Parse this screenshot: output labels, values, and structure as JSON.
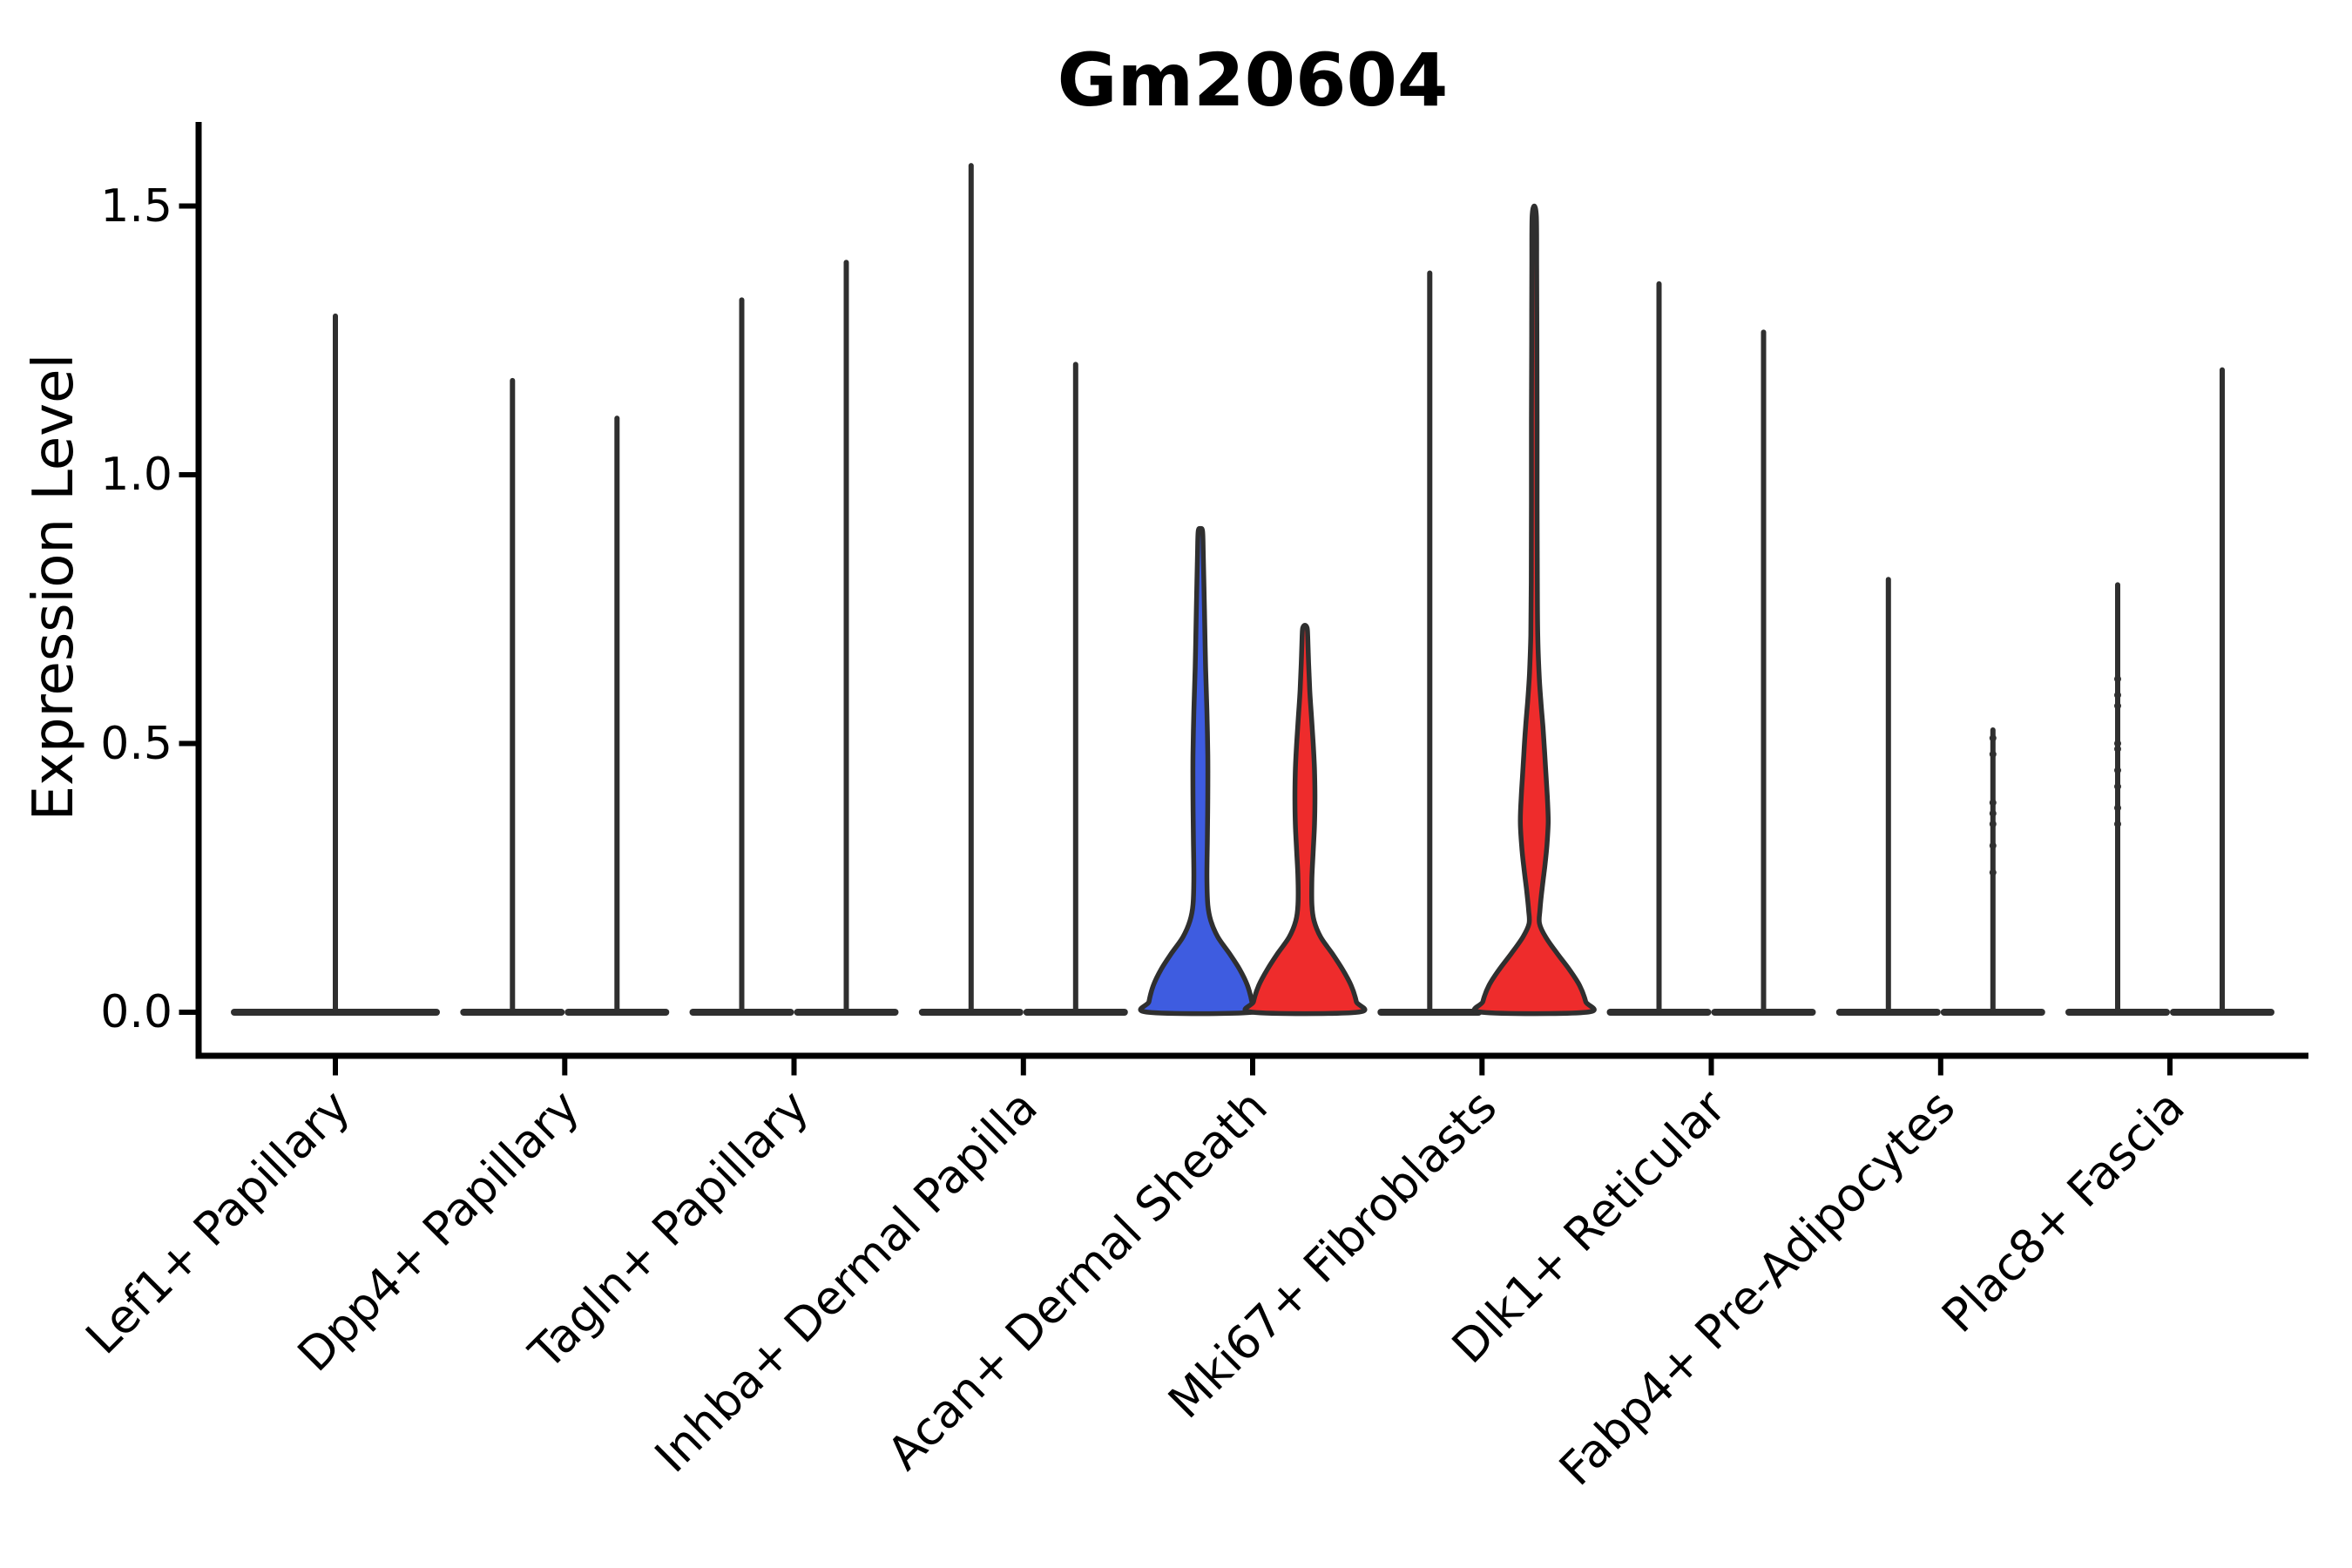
{
  "chart_data": {
    "type": "violin",
    "title": "Gm20604",
    "ylabel": "Expression Level",
    "xlabel": "",
    "grid": false,
    "legend": "none",
    "ylim": [
      -0.08,
      1.66
    ],
    "y_ticks": [
      0.0,
      0.5,
      1.0,
      1.5
    ],
    "y_tick_labels": [
      "0.0",
      "0.5",
      "1.0",
      "1.5"
    ],
    "colors": {
      "blue_fill": "#3E5CE0",
      "red_fill": "#EE2C2C",
      "violin_outline": "#2F2F2F",
      "axis": "#000000"
    },
    "description": "Violin plot of Gm20604 expression; most cells at 0 giving flat bases with thin spikes to the maximum expression value; Acan+ Dermal Sheath (blue/red) and Mki67+ Fibroblasts (red) show filled density bodies.",
    "categories": [
      {
        "label": "Lef1+ Papillary",
        "violins": [
          {
            "side": "center",
            "kind": "flat",
            "max_expression": 1.3,
            "half_width": 120
          }
        ]
      },
      {
        "label": "Dpp4+ Papillary",
        "violins": [
          {
            "side": "left",
            "kind": "flat",
            "max_expression": 1.18,
            "half_width": 60
          },
          {
            "side": "right",
            "kind": "flat",
            "max_expression": 1.11,
            "half_width": 60
          }
        ]
      },
      {
        "label": "Tagln+ Papillary",
        "violins": [
          {
            "side": "left",
            "kind": "flat",
            "max_expression": 1.33,
            "half_width": 60
          },
          {
            "side": "right",
            "kind": "flat",
            "max_expression": 1.4,
            "half_width": 60
          }
        ]
      },
      {
        "label": "Inhba+ Dermal Papilla",
        "violins": [
          {
            "side": "left",
            "kind": "flat",
            "max_expression": 1.58,
            "half_width": 60
          },
          {
            "side": "right",
            "kind": "flat",
            "max_expression": 1.21,
            "half_width": 60
          }
        ]
      },
      {
        "label": "Acan+ Dermal Sheath",
        "violins": [
          {
            "side": "left",
            "kind": "shaped",
            "max_expression": 0.9,
            "fill": "#3E5CE0",
            "profile": [
              [
                0,
                60
              ],
              [
                0.02,
                59
              ],
              [
                0.05,
                54
              ],
              [
                0.08,
                45
              ],
              [
                0.11,
                33
              ],
              [
                0.14,
                20
              ],
              [
                0.17,
                12
              ],
              [
                0.2,
                8.5
              ],
              [
                0.25,
                7.5
              ],
              [
                0.32,
                8
              ],
              [
                0.4,
                8.5
              ],
              [
                0.48,
                8.5
              ],
              [
                0.56,
                7.5
              ],
              [
                0.64,
                6
              ],
              [
                0.72,
                5
              ],
              [
                0.8,
                4
              ],
              [
                0.86,
                3.2
              ],
              [
                0.895,
                2.5
              ],
              [
                0.9,
                0
              ]
            ]
          },
          {
            "side": "right",
            "kind": "shaped",
            "max_expression": 0.72,
            "fill": "#EE2C2C",
            "profile": [
              [
                0,
                60
              ],
              [
                0.02,
                59
              ],
              [
                0.05,
                53
              ],
              [
                0.08,
                43
              ],
              [
                0.11,
                31
              ],
              [
                0.14,
                18
              ],
              [
                0.17,
                10.5
              ],
              [
                0.2,
                8
              ],
              [
                0.25,
                8
              ],
              [
                0.3,
                9.5
              ],
              [
                0.35,
                11
              ],
              [
                0.4,
                11.5
              ],
              [
                0.45,
                11
              ],
              [
                0.5,
                9.5
              ],
              [
                0.55,
                7.5
              ],
              [
                0.6,
                5.5
              ],
              [
                0.65,
                4.2
              ],
              [
                0.7,
                3.2
              ],
              [
                0.715,
                2.5
              ],
              [
                0.72,
                0
              ]
            ]
          }
        ]
      },
      {
        "label": "Mki67+ Fibroblasts",
        "violins": [
          {
            "side": "left",
            "kind": "flat",
            "max_expression": 1.38,
            "half_width": 60
          },
          {
            "side": "right",
            "kind": "shaped",
            "max_expression": 1.5,
            "fill": "#EE2C2C",
            "profile": [
              [
                0,
                60
              ],
              [
                0.02,
                59
              ],
              [
                0.05,
                52
              ],
              [
                0.08,
                40
              ],
              [
                0.11,
                26
              ],
              [
                0.14,
                13
              ],
              [
                0.165,
                6
              ],
              [
                0.19,
                6.5
              ],
              [
                0.23,
                9
              ],
              [
                0.27,
                12
              ],
              [
                0.31,
                14.5
              ],
              [
                0.355,
                16
              ],
              [
                0.4,
                15
              ],
              [
                0.44,
                13.5
              ],
              [
                0.48,
                12
              ],
              [
                0.53,
                10
              ],
              [
                0.58,
                7.5
              ],
              [
                0.63,
                5.5
              ],
              [
                0.7,
                4
              ],
              [
                0.8,
                3.5
              ],
              [
                0.95,
                3.3
              ],
              [
                1.1,
                3.2
              ],
              [
                1.25,
                3
              ],
              [
                1.4,
                2.8
              ],
              [
                1.48,
                2.4
              ],
              [
                1.5,
                0
              ]
            ]
          }
        ]
      },
      {
        "label": "Dlk1+ Reticular",
        "violins": [
          {
            "side": "left",
            "kind": "flat",
            "max_expression": 1.36,
            "half_width": 60
          },
          {
            "side": "right",
            "kind": "flat",
            "max_expression": 1.27,
            "half_width": 60
          }
        ]
      },
      {
        "label": "Fabp4+ Pre-Adipocytes",
        "violins": [
          {
            "side": "left",
            "kind": "flat",
            "max_expression": 0.81,
            "half_width": 60
          },
          {
            "side": "right",
            "kind": "flat",
            "max_expression": 0.53,
            "half_width": 60,
            "dots": [
              0.51,
              0.48,
              0.39,
              0.37,
              0.35,
              0.31,
              0.26
            ]
          }
        ]
      },
      {
        "label": "Plac8+ Fascia",
        "violins": [
          {
            "side": "left",
            "kind": "flat",
            "max_expression": 0.8,
            "half_width": 60,
            "dots": [
              0.62,
              0.59,
              0.57,
              0.5,
              0.49,
              0.45,
              0.42,
              0.38,
              0.35
            ]
          },
          {
            "side": "right",
            "kind": "flat",
            "max_expression": 1.2,
            "half_width": 60
          }
        ]
      }
    ]
  }
}
